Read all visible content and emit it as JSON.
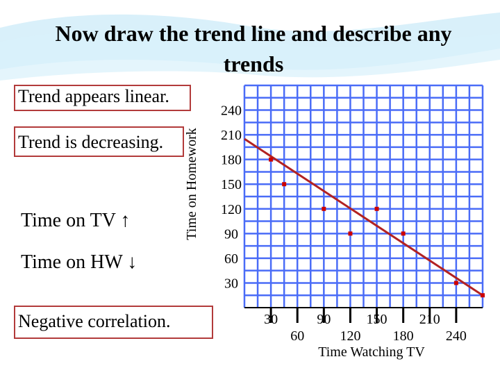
{
  "slide": {
    "title_line1": "Now draw the trend line and describe any",
    "title_line2": "trends",
    "note_linear": "Trend appears linear.",
    "note_decreasing": "Trend is decreasing.",
    "tv_text": "Time on TV",
    "tv_arrow": "↑",
    "hw_text": "Time on HW",
    "hw_arrow": "↓",
    "note_negative": "Negative correlation."
  },
  "colors": {
    "grid": "#4a6cf7",
    "points": "#cc0000",
    "trend_line": "#b22222",
    "box_border": "#b23a3a",
    "banner": "#bfe6f7"
  },
  "chart_data": {
    "type": "scatter",
    "xlabel": "Time Watching TV",
    "ylabel": "Time on Homework",
    "x_ticks": [
      30,
      60,
      90,
      120,
      150,
      180,
      210,
      240
    ],
    "y_ticks": [
      30,
      60,
      90,
      120,
      150,
      180,
      210,
      240
    ],
    "xlim": [
      0,
      270
    ],
    "ylim": [
      0,
      270
    ],
    "points": [
      {
        "x": 30,
        "y": 180
      },
      {
        "x": 45,
        "y": 150
      },
      {
        "x": 90,
        "y": 120
      },
      {
        "x": 120,
        "y": 90
      },
      {
        "x": 150,
        "y": 120
      },
      {
        "x": 180,
        "y": 90
      },
      {
        "x": 240,
        "y": 30
      },
      {
        "x": 270,
        "y": 15
      }
    ],
    "trend_line": {
      "x1": 0,
      "y1": 205,
      "x2": 270,
      "y2": 15
    },
    "grid": true
  }
}
